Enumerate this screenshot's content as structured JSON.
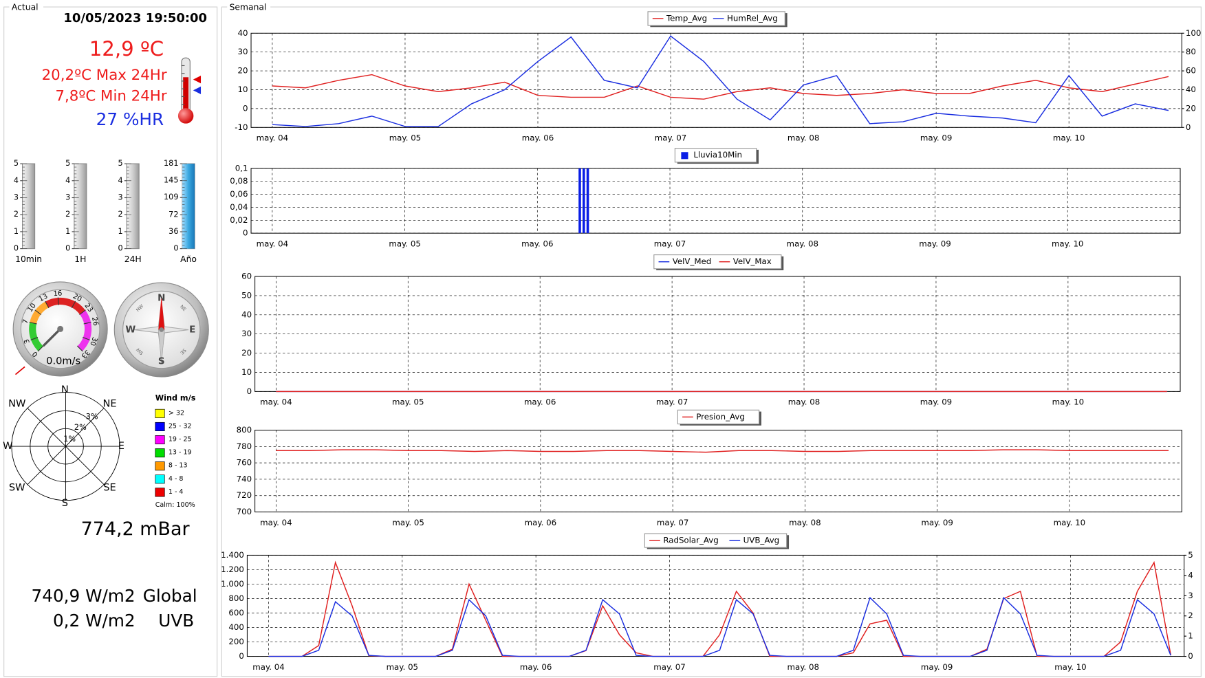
{
  "actual": {
    "panel_title": "Actual",
    "datetime": "10/05/2023 19:50:00",
    "temp": "12,9 ºC",
    "max": "20,2ºC Max 24Hr",
    "min": "7,8ºC Min  24Hr",
    "hr": "27 %HR"
  },
  "rain_gauges": [
    {
      "label": "10min",
      "ticks": [
        0,
        1,
        2,
        3,
        4,
        5
      ],
      "value": 0
    },
    {
      "label": "1H",
      "ticks": [
        0,
        1,
        2,
        3,
        4,
        5
      ],
      "value": 0
    },
    {
      "label": "24H",
      "ticks": [
        0,
        1,
        2,
        3,
        4,
        5
      ],
      "value": 0
    },
    {
      "label": "Año",
      "ticks": [
        0,
        36,
        72,
        109,
        145,
        181
      ],
      "value": 181
    }
  ],
  "anemometer": {
    "scale": [
      0,
      3,
      7,
      10,
      13,
      16,
      20,
      23,
      26,
      30,
      33
    ],
    "value": 0,
    "value_label": "0.0m/s"
  },
  "compass": {
    "labels": [
      "N",
      "E",
      "S",
      "W"
    ],
    "minor": [
      "NE",
      "SE",
      "SW",
      "NW"
    ]
  },
  "wind_rose": {
    "directions": [
      "N",
      "NE",
      "E",
      "SE",
      "S",
      "SW",
      "W",
      "NW"
    ],
    "rings": [
      "1%",
      "2%",
      "3%"
    ],
    "legend_title": "Wind m/s",
    "legend": [
      {
        "label": "> 32",
        "color": "#ffff00"
      },
      {
        "label": "25 - 32",
        "color": "#0000ff"
      },
      {
        "label": "19 - 25",
        "color": "#ff00ff"
      },
      {
        "label": "13 - 19",
        "color": "#00dd00"
      },
      {
        "label": "8 - 13",
        "color": "#ff9900"
      },
      {
        "label": "4 - 8",
        "color": "#00ffff"
      },
      {
        "label": "1 - 4",
        "color": "#ee0000"
      }
    ],
    "calm": "Calm: 100%"
  },
  "pressure": "774,2 mBar",
  "radiation": {
    "global_value": "740,9 W/m2",
    "global_label": "Global",
    "uvb_value": "0,2 W/m2",
    "uvb_label": "UVB"
  },
  "semanal_title": "Semanal",
  "chart_data": [
    {
      "type": "line",
      "legend": "top",
      "grid": true,
      "x": [
        4,
        4.25,
        4.5,
        4.75,
        5,
        5.25,
        5.5,
        5.75,
        6,
        6.25,
        6.5,
        6.75,
        7,
        7.25,
        7.5,
        7.75,
        8,
        8.25,
        8.5,
        8.75,
        9,
        9.25,
        9.5,
        9.75,
        10,
        10.25,
        10.5,
        10.75
      ],
      "xlim": [
        3.84,
        10.85
      ],
      "xticks": [
        {
          "value": 4,
          "label": "may. 04"
        },
        {
          "value": 5,
          "label": "may. 05"
        },
        {
          "value": 6,
          "label": "may. 06"
        },
        {
          "value": 7,
          "label": "may. 07"
        },
        {
          "value": 8,
          "label": "may. 08"
        },
        {
          "value": 9,
          "label": "may. 09"
        },
        {
          "value": 10,
          "label": "may. 10"
        }
      ],
      "ylim": [
        -10,
        40
      ],
      "yticks": [
        -10,
        0,
        10,
        20,
        30,
        40
      ],
      "y2lim": [
        0,
        100
      ],
      "y2ticks": [
        0,
        20,
        40,
        60,
        80,
        100
      ],
      "series": [
        {
          "name": "Temp_Avg",
          "color": "#e02020",
          "values": [
            12,
            11,
            15,
            18,
            12,
            9,
            11,
            14,
            7,
            6,
            6,
            12,
            6,
            5,
            9,
            11,
            8,
            7,
            8,
            10,
            8,
            8,
            12,
            15,
            11,
            9,
            13,
            17
          ]
        },
        {
          "name": "HumRel_Avg",
          "color": "#1a2ee0",
          "axis": "y2",
          "values": [
            3,
            1,
            4,
            12,
            1,
            1,
            25,
            40,
            70,
            96,
            50,
            42,
            97,
            70,
            30,
            8,
            45,
            55,
            4,
            6,
            15,
            12,
            10,
            5,
            55,
            12,
            25,
            18
          ]
        }
      ]
    },
    {
      "type": "bar",
      "legend": "top",
      "grid": true,
      "x": [
        6.32,
        6.35,
        6.38
      ],
      "xlim": [
        3.84,
        10.85
      ],
      "xticks": [
        {
          "value": 4,
          "label": "may. 04"
        },
        {
          "value": 5,
          "label": "may. 05"
        },
        {
          "value": 6,
          "label": "may. 06"
        },
        {
          "value": 7,
          "label": "may. 07"
        },
        {
          "value": 8,
          "label": "may. 08"
        },
        {
          "value": 9,
          "label": "may. 09"
        },
        {
          "value": 10,
          "label": "may. 10"
        }
      ],
      "ylim": [
        0,
        0.1
      ],
      "yticks": [
        0,
        {
          "value": 0.02,
          "label": "0,02"
        },
        {
          "value": 0.04,
          "label": "0,04"
        },
        {
          "value": 0.06,
          "label": "0,06"
        },
        {
          "value": 0.08,
          "label": "0,08"
        },
        {
          "value": 0.1,
          "label": "0,1"
        }
      ],
      "series": [
        {
          "name": "Lluvia10Min",
          "color": "#0a1ee6",
          "values": [
            0.1,
            0.1,
            0.1
          ]
        }
      ]
    },
    {
      "type": "line",
      "legend": "top",
      "grid": true,
      "x": [
        4,
        4.25,
        4.5,
        4.75,
        5,
        5.25,
        5.5,
        5.75,
        6,
        6.25,
        6.5,
        6.75,
        7,
        7.25,
        7.5,
        7.75,
        8,
        8.25,
        8.5,
        8.75,
        9,
        9.25,
        9.5,
        9.75,
        10,
        10.25,
        10.5,
        10.75
      ],
      "xlim": [
        3.84,
        10.85
      ],
      "xticks": [
        {
          "value": 4,
          "label": "may. 04"
        },
        {
          "value": 5,
          "label": "may. 05"
        },
        {
          "value": 6,
          "label": "may. 06"
        },
        {
          "value": 7,
          "label": "may. 07"
        },
        {
          "value": 8,
          "label": "may. 08"
        },
        {
          "value": 9,
          "label": "may. 09"
        },
        {
          "value": 10,
          "label": "may. 10"
        }
      ],
      "ylim": [
        0,
        60
      ],
      "yticks": [
        0,
        10,
        20,
        30,
        40,
        50,
        60
      ],
      "series": [
        {
          "name": "VelV_Med",
          "color": "#1a2ee0",
          "values": [
            0,
            0,
            0,
            0,
            0,
            0,
            0,
            0,
            0,
            0,
            0,
            0,
            0,
            0,
            0,
            0,
            0,
            0,
            0,
            0,
            0,
            0,
            0,
            0,
            0,
            0,
            0,
            0
          ]
        },
        {
          "name": "VelV_Max",
          "color": "#e02020",
          "values": [
            0,
            0,
            0,
            0,
            0,
            0,
            0,
            0,
            0,
            0,
            0,
            0,
            0,
            0,
            0,
            0,
            0,
            0,
            0,
            0,
            0,
            0,
            0,
            0,
            0,
            0,
            0,
            0
          ]
        }
      ]
    },
    {
      "type": "line",
      "legend": "top",
      "grid": true,
      "x": [
        4,
        4.25,
        4.5,
        4.75,
        5,
        5.25,
        5.5,
        5.75,
        6,
        6.25,
        6.5,
        6.75,
        7,
        7.25,
        7.5,
        7.75,
        8,
        8.25,
        8.5,
        8.75,
        9,
        9.25,
        9.5,
        9.75,
        10,
        10.25,
        10.5,
        10.75
      ],
      "xlim": [
        3.84,
        10.85
      ],
      "xticks": [
        {
          "value": 4,
          "label": "may. 04"
        },
        {
          "value": 5,
          "label": "may. 05"
        },
        {
          "value": 6,
          "label": "may. 06"
        },
        {
          "value": 7,
          "label": "may. 07"
        },
        {
          "value": 8,
          "label": "may. 08"
        },
        {
          "value": 9,
          "label": "may. 09"
        },
        {
          "value": 10,
          "label": "may. 10"
        }
      ],
      "ylim": [
        700,
        800
      ],
      "yticks": [
        700,
        720,
        740,
        760,
        780,
        800
      ],
      "series": [
        {
          "name": "Presion_Avg",
          "color": "#e02020",
          "values": [
            775,
            775,
            776,
            776,
            775,
            775,
            774,
            775,
            774,
            774,
            775,
            775,
            774,
            773,
            775,
            775,
            774,
            774,
            775,
            775,
            775,
            775,
            776,
            776,
            775,
            775,
            775,
            775
          ]
        }
      ]
    },
    {
      "type": "line",
      "legend": "top",
      "grid": true,
      "x": [
        4,
        4.125,
        4.25,
        4.375,
        4.5,
        4.625,
        4.75,
        4.875,
        5,
        5.125,
        5.25,
        5.375,
        5.5,
        5.625,
        5.75,
        5.875,
        6,
        6.125,
        6.25,
        6.375,
        6.5,
        6.625,
        6.75,
        6.875,
        7,
        7.125,
        7.25,
        7.375,
        7.5,
        7.625,
        7.75,
        7.875,
        8,
        8.125,
        8.25,
        8.375,
        8.5,
        8.625,
        8.75,
        8.875,
        9,
        9.125,
        9.25,
        9.375,
        9.5,
        9.625,
        9.75,
        9.875,
        10,
        10.125,
        10.25,
        10.375,
        10.5,
        10.625,
        10.75
      ],
      "xlim": [
        3.84,
        10.85
      ],
      "xticks": [
        {
          "value": 4,
          "label": "may. 04"
        },
        {
          "value": 5,
          "label": "may. 05"
        },
        {
          "value": 6,
          "label": "may. 06"
        },
        {
          "value": 7,
          "label": "may. 07"
        },
        {
          "value": 8,
          "label": "may. 08"
        },
        {
          "value": 9,
          "label": "may. 09"
        },
        {
          "value": 10,
          "label": "may. 10"
        }
      ],
      "ylim": [
        0,
        1400
      ],
      "yticks": [
        0,
        200,
        400,
        600,
        800,
        {
          "value": 1000,
          "label": "1.000"
        },
        {
          "value": 1200,
          "label": "1.200"
        },
        {
          "value": 1400,
          "label": "1.400"
        }
      ],
      "y2lim": [
        0,
        5
      ],
      "y2ticks": [
        0,
        1,
        2,
        3,
        4,
        5
      ],
      "series": [
        {
          "name": "RadSolar_Avg",
          "color": "#e02020",
          "values": [
            0,
            0,
            0,
            150,
            1300,
            700,
            10,
            0,
            0,
            0,
            0,
            100,
            1000,
            500,
            0,
            0,
            0,
            0,
            0,
            80,
            700,
            300,
            50,
            0,
            0,
            0,
            0,
            300,
            900,
            600,
            0,
            0,
            0,
            0,
            0,
            50,
            450,
            500,
            0,
            0,
            0,
            0,
            0,
            100,
            800,
            900,
            0,
            0,
            0,
            0,
            0,
            200,
            900,
            1300,
            20
          ]
        },
        {
          "name": "UVB_Avg",
          "color": "#1a2ee0",
          "axis": "y2",
          "values": [
            0,
            0,
            0,
            0.3,
            2.7,
            2,
            0.05,
            0,
            0,
            0,
            0,
            0.3,
            2.8,
            2,
            0.05,
            0,
            0,
            0,
            0,
            0.3,
            2.8,
            2.1,
            0.05,
            0,
            0,
            0,
            0,
            0.3,
            2.8,
            2.1,
            0.05,
            0,
            0,
            0,
            0,
            0.3,
            2.9,
            2.1,
            0.05,
            0,
            0,
            0,
            0,
            0.3,
            2.9,
            2.1,
            0.05,
            0,
            0,
            0,
            0,
            0.3,
            2.8,
            2.1,
            0.05
          ]
        }
      ]
    }
  ]
}
